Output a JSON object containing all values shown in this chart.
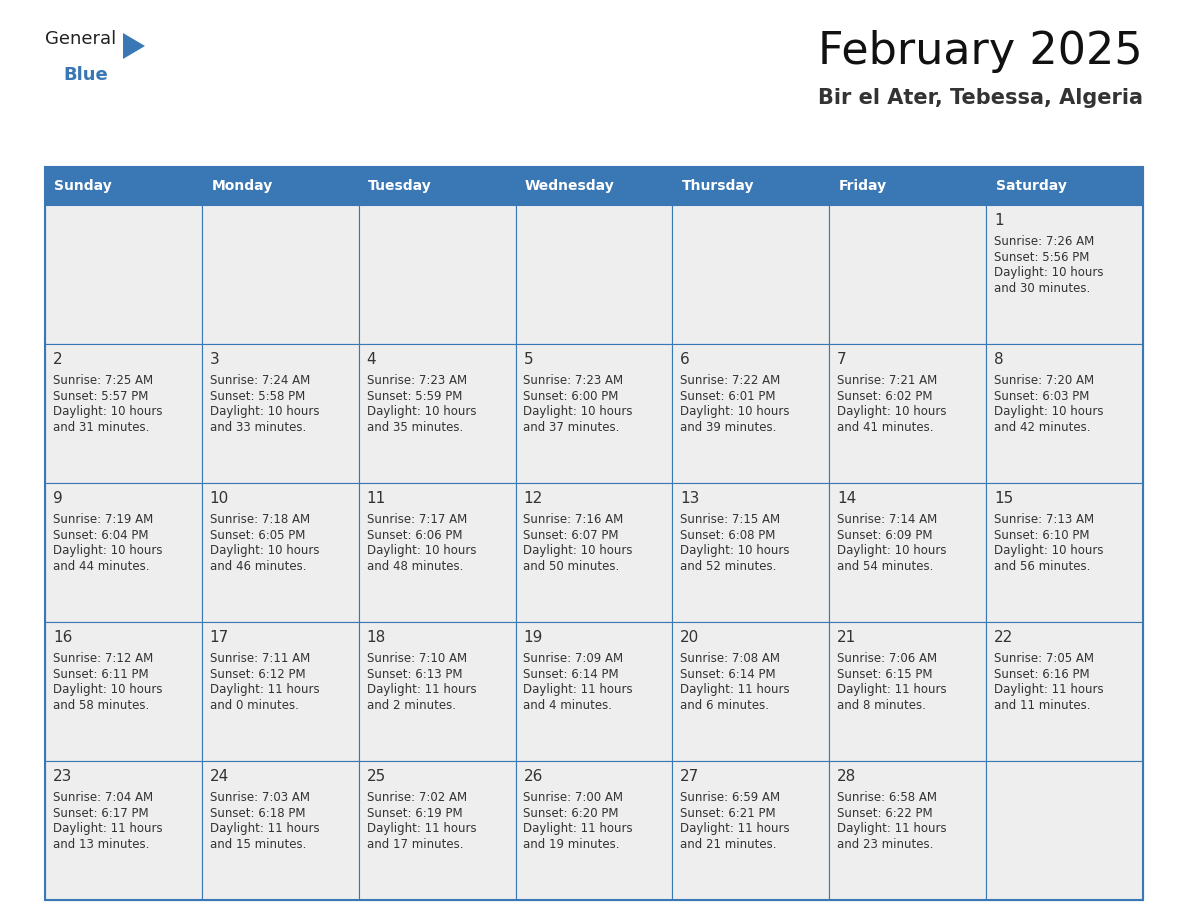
{
  "title": "February 2025",
  "subtitle": "Bir el Ater, Tebessa, Algeria",
  "header_color": "#3a78b5",
  "header_text_color": "#ffffff",
  "cell_bg_color": "#eeeeee",
  "cell_bg_white": "#ffffff",
  "border_color": "#3a78b5",
  "day_number_color": "#333333",
  "text_color": "#333333",
  "days_of_week": [
    "Sunday",
    "Monday",
    "Tuesday",
    "Wednesday",
    "Thursday",
    "Friday",
    "Saturday"
  ],
  "weeks": [
    [
      {
        "day": null,
        "sunrise": null,
        "sunset": null,
        "daylight": null
      },
      {
        "day": null,
        "sunrise": null,
        "sunset": null,
        "daylight": null
      },
      {
        "day": null,
        "sunrise": null,
        "sunset": null,
        "daylight": null
      },
      {
        "day": null,
        "sunrise": null,
        "sunset": null,
        "daylight": null
      },
      {
        "day": null,
        "sunrise": null,
        "sunset": null,
        "daylight": null
      },
      {
        "day": null,
        "sunrise": null,
        "sunset": null,
        "daylight": null
      },
      {
        "day": 1,
        "sunrise": "7:26 AM",
        "sunset": "5:56 PM",
        "daylight": "10 hours and 30 minutes."
      }
    ],
    [
      {
        "day": 2,
        "sunrise": "7:25 AM",
        "sunset": "5:57 PM",
        "daylight": "10 hours and 31 minutes."
      },
      {
        "day": 3,
        "sunrise": "7:24 AM",
        "sunset": "5:58 PM",
        "daylight": "10 hours and 33 minutes."
      },
      {
        "day": 4,
        "sunrise": "7:23 AM",
        "sunset": "5:59 PM",
        "daylight": "10 hours and 35 minutes."
      },
      {
        "day": 5,
        "sunrise": "7:23 AM",
        "sunset": "6:00 PM",
        "daylight": "10 hours and 37 minutes."
      },
      {
        "day": 6,
        "sunrise": "7:22 AM",
        "sunset": "6:01 PM",
        "daylight": "10 hours and 39 minutes."
      },
      {
        "day": 7,
        "sunrise": "7:21 AM",
        "sunset": "6:02 PM",
        "daylight": "10 hours and 41 minutes."
      },
      {
        "day": 8,
        "sunrise": "7:20 AM",
        "sunset": "6:03 PM",
        "daylight": "10 hours and 42 minutes."
      }
    ],
    [
      {
        "day": 9,
        "sunrise": "7:19 AM",
        "sunset": "6:04 PM",
        "daylight": "10 hours and 44 minutes."
      },
      {
        "day": 10,
        "sunrise": "7:18 AM",
        "sunset": "6:05 PM",
        "daylight": "10 hours and 46 minutes."
      },
      {
        "day": 11,
        "sunrise": "7:17 AM",
        "sunset": "6:06 PM",
        "daylight": "10 hours and 48 minutes."
      },
      {
        "day": 12,
        "sunrise": "7:16 AM",
        "sunset": "6:07 PM",
        "daylight": "10 hours and 50 minutes."
      },
      {
        "day": 13,
        "sunrise": "7:15 AM",
        "sunset": "6:08 PM",
        "daylight": "10 hours and 52 minutes."
      },
      {
        "day": 14,
        "sunrise": "7:14 AM",
        "sunset": "6:09 PM",
        "daylight": "10 hours and 54 minutes."
      },
      {
        "day": 15,
        "sunrise": "7:13 AM",
        "sunset": "6:10 PM",
        "daylight": "10 hours and 56 minutes."
      }
    ],
    [
      {
        "day": 16,
        "sunrise": "7:12 AM",
        "sunset": "6:11 PM",
        "daylight": "10 hours and 58 minutes."
      },
      {
        "day": 17,
        "sunrise": "7:11 AM",
        "sunset": "6:12 PM",
        "daylight": "11 hours and 0 minutes."
      },
      {
        "day": 18,
        "sunrise": "7:10 AM",
        "sunset": "6:13 PM",
        "daylight": "11 hours and 2 minutes."
      },
      {
        "day": 19,
        "sunrise": "7:09 AM",
        "sunset": "6:14 PM",
        "daylight": "11 hours and 4 minutes."
      },
      {
        "day": 20,
        "sunrise": "7:08 AM",
        "sunset": "6:14 PM",
        "daylight": "11 hours and 6 minutes."
      },
      {
        "day": 21,
        "sunrise": "7:06 AM",
        "sunset": "6:15 PM",
        "daylight": "11 hours and 8 minutes."
      },
      {
        "day": 22,
        "sunrise": "7:05 AM",
        "sunset": "6:16 PM",
        "daylight": "11 hours and 11 minutes."
      }
    ],
    [
      {
        "day": 23,
        "sunrise": "7:04 AM",
        "sunset": "6:17 PM",
        "daylight": "11 hours and 13 minutes."
      },
      {
        "day": 24,
        "sunrise": "7:03 AM",
        "sunset": "6:18 PM",
        "daylight": "11 hours and 15 minutes."
      },
      {
        "day": 25,
        "sunrise": "7:02 AM",
        "sunset": "6:19 PM",
        "daylight": "11 hours and 17 minutes."
      },
      {
        "day": 26,
        "sunrise": "7:00 AM",
        "sunset": "6:20 PM",
        "daylight": "11 hours and 19 minutes."
      },
      {
        "day": 27,
        "sunrise": "6:59 AM",
        "sunset": "6:21 PM",
        "daylight": "11 hours and 21 minutes."
      },
      {
        "day": 28,
        "sunrise": "6:58 AM",
        "sunset": "6:22 PM",
        "daylight": "11 hours and 23 minutes."
      },
      {
        "day": null,
        "sunrise": null,
        "sunset": null,
        "daylight": null
      }
    ]
  ],
  "logo_text_general": "General",
  "logo_text_blue": "Blue",
  "logo_color_general": "#222222",
  "logo_color_blue": "#3a78b5",
  "logo_triangle_color": "#3a78b5",
  "title_fontsize": 32,
  "subtitle_fontsize": 15,
  "header_fontsize": 10,
  "day_num_fontsize": 11,
  "cell_text_fontsize": 8.5
}
